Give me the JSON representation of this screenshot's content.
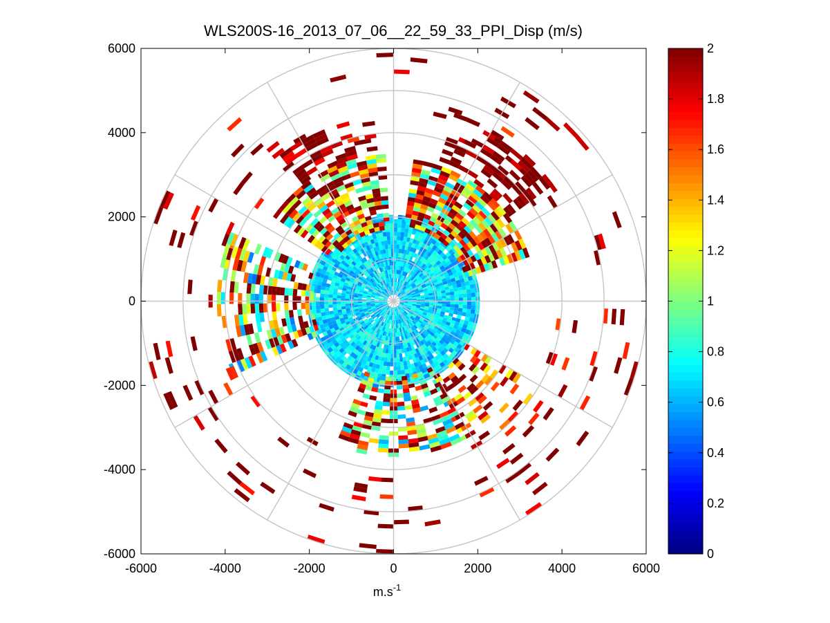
{
  "chart_data": {
    "type": "heatmap",
    "subtype": "polar-ppi",
    "title": "WLS200S-16_2013_07_06__22_59_33_PPI_Disp (m/s)",
    "xlabel": "m.s",
    "xlabel_superscript": "-1",
    "ylabel": "",
    "xlim": [
      -6000,
      6000
    ],
    "ylim": [
      -6000,
      6000
    ],
    "xticks": [
      -6000,
      -4000,
      -2000,
      0,
      2000,
      4000,
      6000
    ],
    "yticks": [
      6000,
      4000,
      2000,
      0,
      -2000,
      -4000,
      -6000
    ],
    "xtick_labels": [
      "-6000",
      "-4000",
      "-2000",
      "0",
      "2000",
      "4000",
      "6000"
    ],
    "ytick_labels": [
      "6000",
      "4000",
      "2000",
      "0",
      "-2000",
      "-4000",
      "-6000"
    ],
    "grid": true,
    "range_rings": [
      1000,
      2000,
      3000,
      4000,
      5000,
      6000
    ],
    "spoke_angles_deg": [
      0,
      30,
      60,
      90,
      120,
      150,
      180,
      210,
      240,
      270,
      300,
      330
    ],
    "colorbar": {
      "vmin": 0,
      "vmax": 2,
      "colormap": "jet",
      "ticks": [
        0,
        0.2,
        0.4,
        0.6,
        0.8,
        1,
        1.2,
        1.4,
        1.6,
        1.8,
        2
      ],
      "tick_labels": [
        "0",
        "0.2",
        "0.4",
        "0.6",
        "0.8",
        "1",
        "1.2",
        "1.4",
        "1.6",
        "1.8",
        "2"
      ]
    },
    "approximate_sectors": [
      {
        "name": "core",
        "az_from": 0,
        "az_to": 360,
        "r_from": 150,
        "r_to": 2000,
        "value": 0.68,
        "spread": 0.18,
        "density": 0.97
      },
      {
        "name": "north-east",
        "az_from": 8,
        "az_to": 72,
        "r_from": 1800,
        "r_to": 3400,
        "value": 1.3,
        "spread": 0.65,
        "density": 0.85
      },
      {
        "name": "north-east-outer",
        "az_from": 18,
        "az_to": 52,
        "r_from": 3400,
        "r_to": 4700,
        "value": 2.0,
        "spread": 0.2,
        "density": 0.55
      },
      {
        "name": "north-west",
        "az_from": 305,
        "az_to": 355,
        "r_from": 1700,
        "r_to": 3500,
        "value": 1.35,
        "spread": 0.65,
        "density": 0.8
      },
      {
        "name": "north-west-outer",
        "az_from": 322,
        "az_to": 354,
        "r_from": 3500,
        "r_to": 4400,
        "value": 2.0,
        "spread": 0.25,
        "density": 0.55
      },
      {
        "name": "west",
        "az_from": 245,
        "az_to": 290,
        "r_from": 1900,
        "r_to": 4200,
        "value": 1.1,
        "spread": 0.65,
        "density": 0.55
      },
      {
        "name": "south",
        "az_from": 150,
        "az_to": 200,
        "r_from": 1800,
        "r_to": 3700,
        "value": 1.2,
        "spread": 0.7,
        "density": 0.6
      },
      {
        "name": "south-east",
        "az_from": 120,
        "az_to": 150,
        "r_from": 2000,
        "r_to": 4000,
        "value": 1.6,
        "spread": 0.5,
        "density": 0.45
      },
      {
        "name": "scattered",
        "az_from": 0,
        "az_to": 360,
        "r_from": 3800,
        "r_to": 6000,
        "value": 1.9,
        "spread": 0.3,
        "density": 0.05
      }
    ]
  }
}
